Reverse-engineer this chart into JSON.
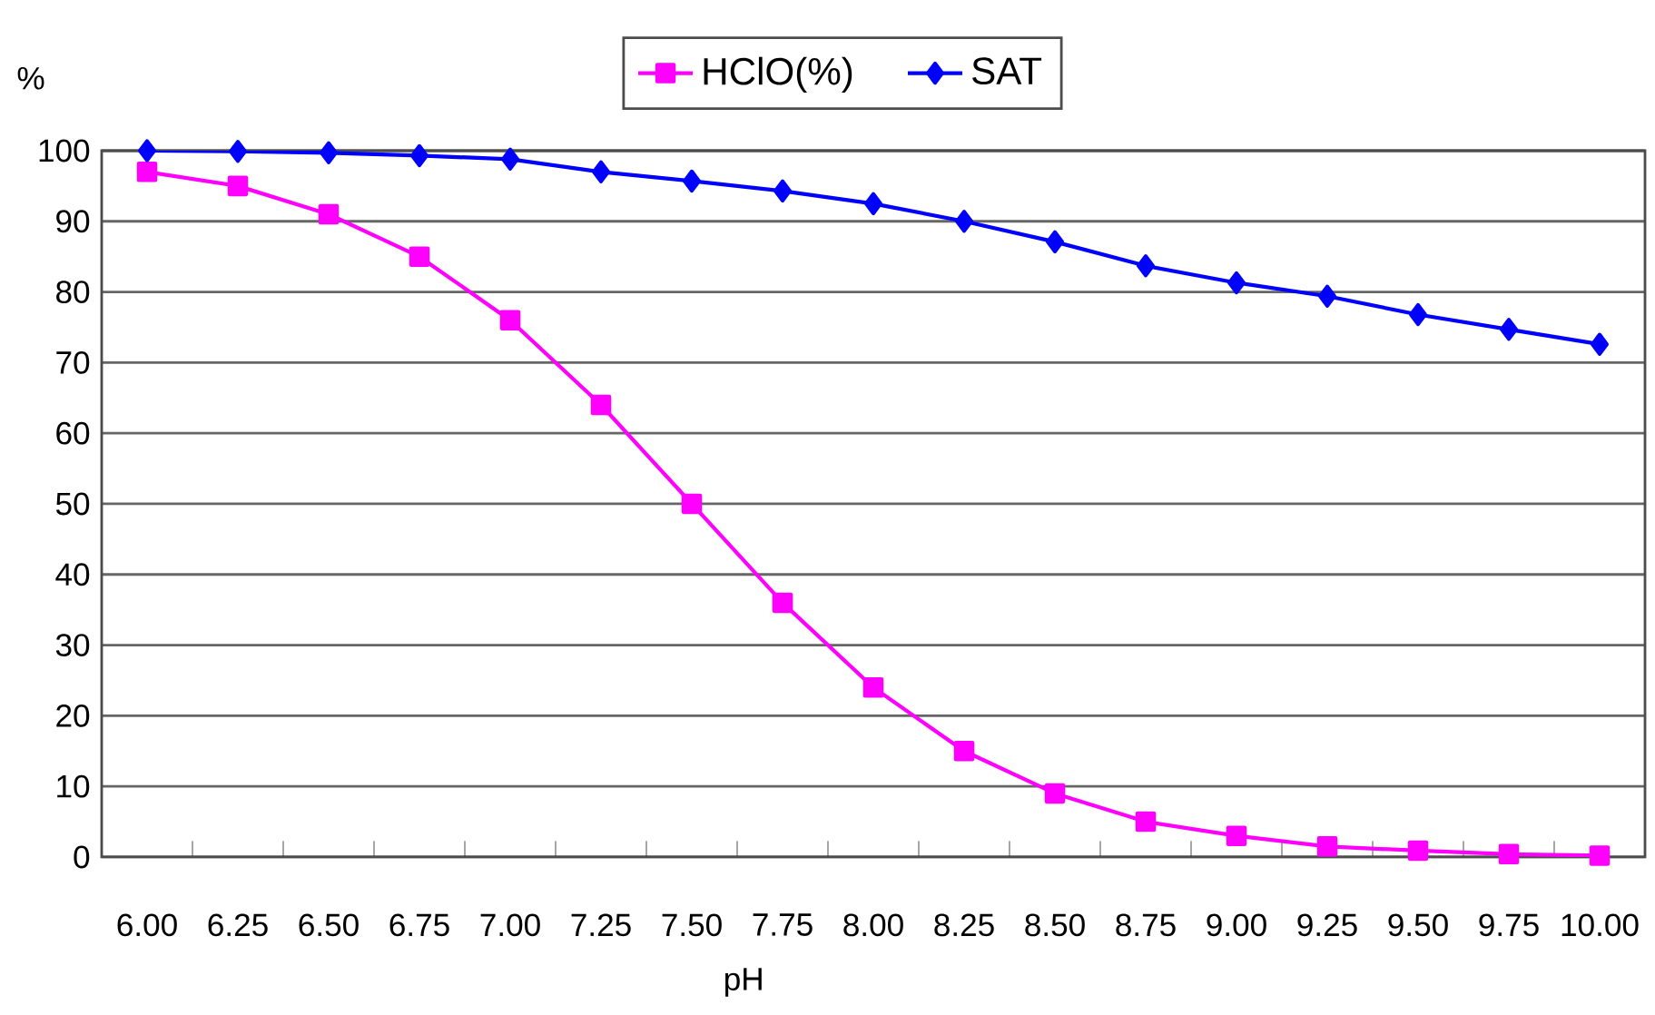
{
  "chart_data": {
    "type": "line",
    "xlabel": "pH",
    "ylabel": "%",
    "categories": [
      "6.00",
      "6.25",
      "6.50",
      "6.75",
      "7.00",
      "7.25",
      "7.50",
      "7.75",
      "8.00",
      "8.25",
      "8.50",
      "8.75",
      "9.00",
      "9.25",
      "9.50",
      "9.75",
      "10.00"
    ],
    "series": [
      {
        "name": "HClO(%)",
        "color": "#ff00ff",
        "marker": "square",
        "values": [
          97,
          95,
          91,
          85,
          76,
          64,
          50,
          36,
          24,
          15,
          9,
          5,
          3,
          1.5,
          0.9,
          0.4,
          0.2
        ]
      },
      {
        "name": "SAT",
        "color": "#0000ff",
        "marker": "diamond",
        "values": [
          100,
          99.9,
          99.7,
          99.3,
          98.8,
          97.0,
          95.7,
          94.3,
          92.5,
          90.0,
          87.1,
          83.7,
          81.3,
          79.4,
          76.8,
          74.7,
          72.6
        ]
      }
    ],
    "ylim": [
      0,
      100
    ],
    "yticks": [
      0,
      10,
      20,
      30,
      40,
      50,
      60,
      70,
      80,
      90,
      100
    ],
    "grid": "y",
    "legend": "top",
    "line_style": "solid"
  }
}
